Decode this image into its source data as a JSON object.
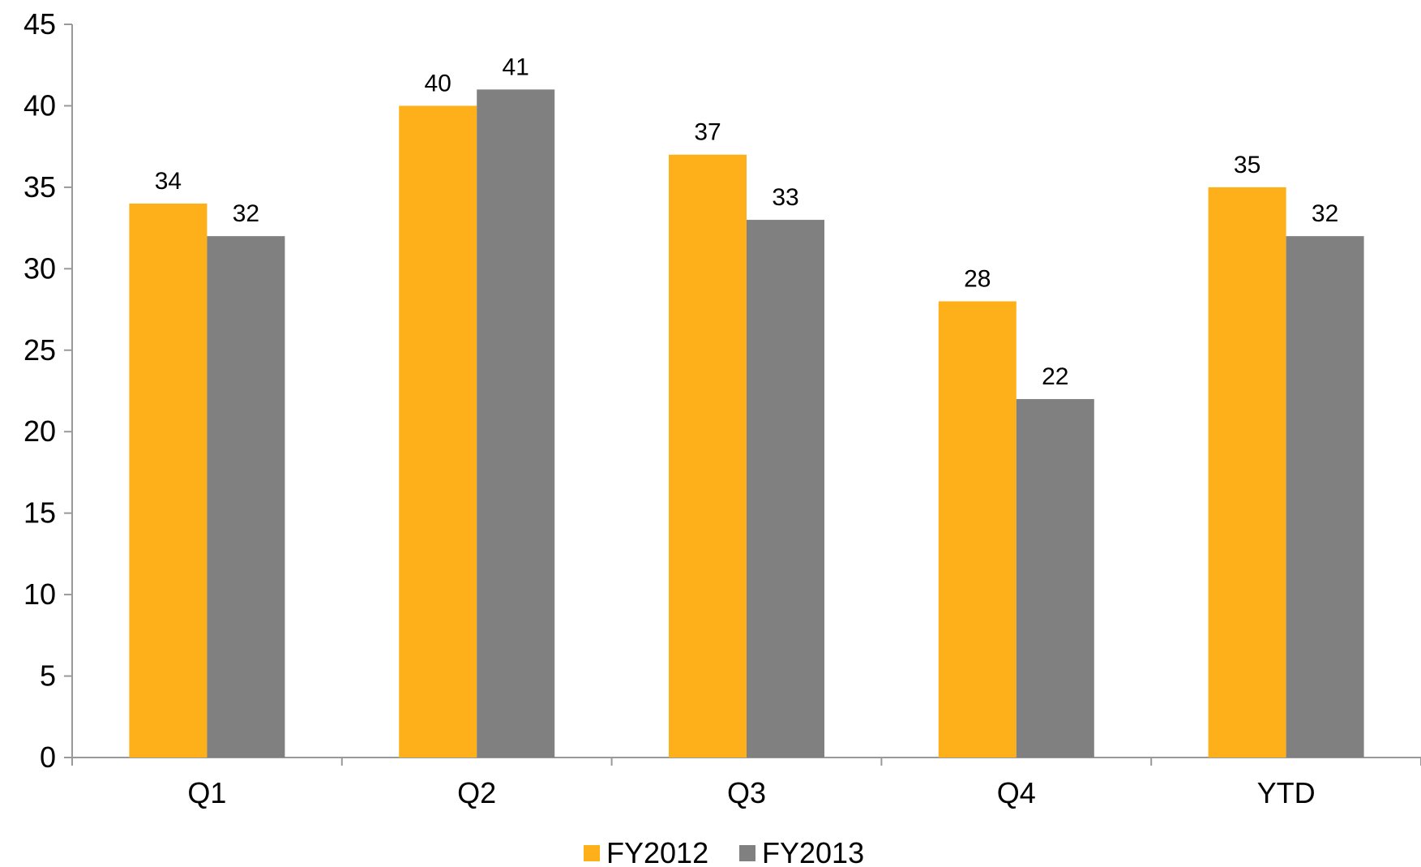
{
  "chart_data": {
    "type": "bar",
    "title": "",
    "xlabel": "",
    "ylabel": "",
    "categories": [
      "Q1",
      "Q2",
      "Q3",
      "Q4",
      "YTD"
    ],
    "series": [
      {
        "name": "FY2012",
        "color": "#FDB01A",
        "values": [
          34,
          40,
          37,
          28,
          35
        ]
      },
      {
        "name": "FY2013",
        "color": "#808080",
        "values": [
          32,
          41,
          33,
          22,
          32
        ]
      }
    ],
    "ylim": [
      0,
      45
    ],
    "yticks": [
      0,
      5,
      10,
      15,
      20,
      25,
      30,
      35,
      40,
      45
    ],
    "grid": false,
    "legend_position": "bottom-center",
    "axis_color": "#999999"
  }
}
